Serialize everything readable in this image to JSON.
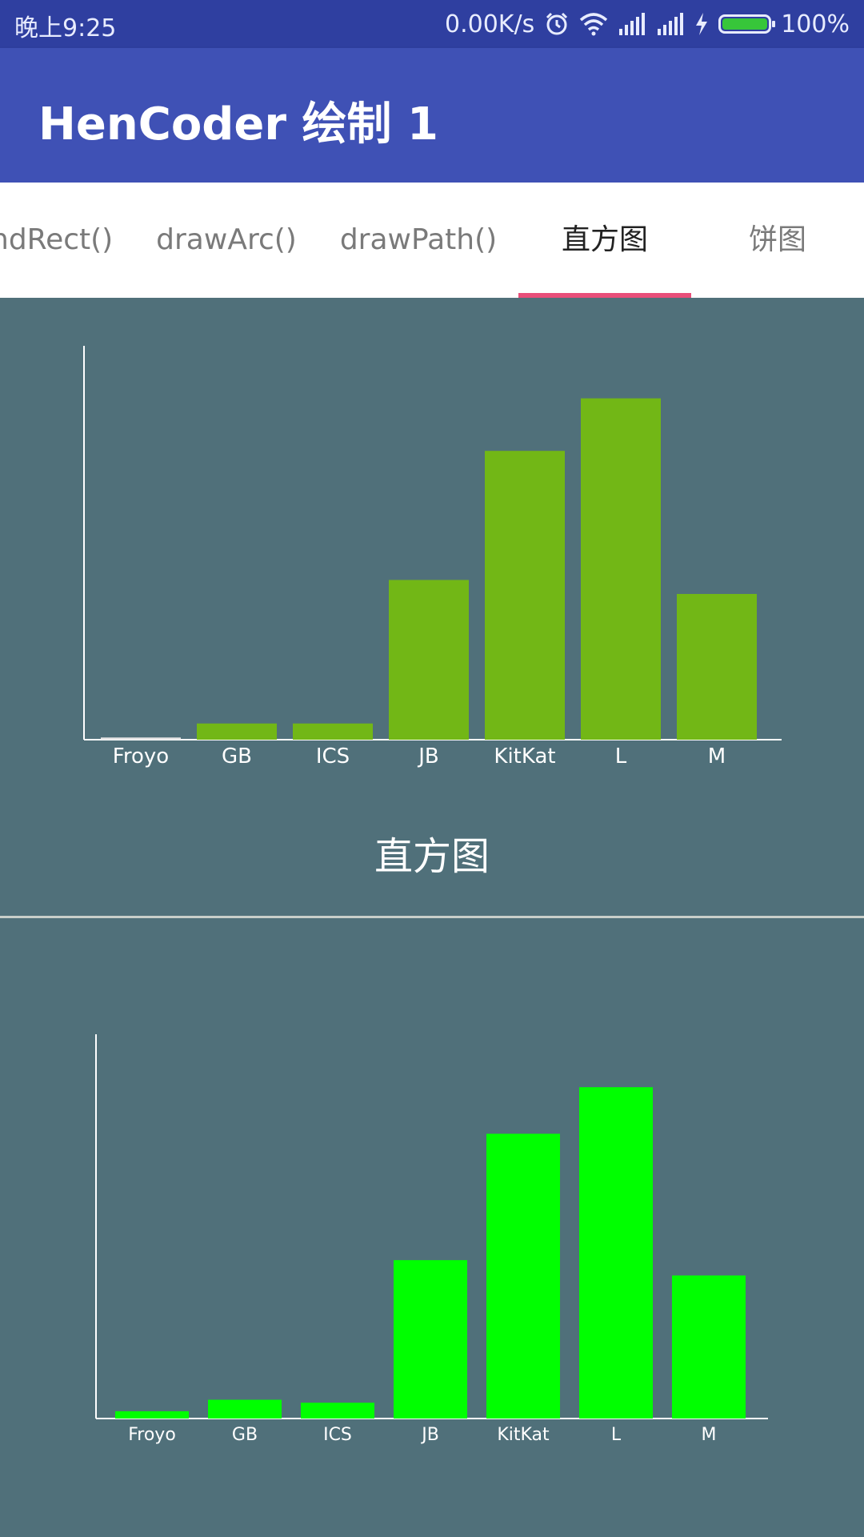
{
  "status_bar": {
    "time": "晚上9:25",
    "net_speed": "0.00K/s",
    "battery": "100%",
    "icons": [
      "alarm-icon",
      "wifi-icon",
      "signal-icon",
      "signal-icon",
      "charging-icon",
      "battery-icon"
    ]
  },
  "app_bar": {
    "title": "HenCoder 绘制 1"
  },
  "tabs": [
    {
      "label": "ndRect()"
    },
    {
      "label": "drawArc()"
    },
    {
      "label": "drawPath()"
    },
    {
      "label": "直方图",
      "active": true
    },
    {
      "label": "饼图"
    }
  ],
  "colors": {
    "status_bar": "#2f3fa0",
    "app_bar": "#3f51b5",
    "content_bg": "#50707a",
    "tab_indicator": "#e94f7a",
    "bar_top": "#72b716",
    "bar_bottom": "#00ff00"
  },
  "caption": "直方图",
  "chart_data": [
    {
      "type": "bar",
      "categories": [
        "Froyo",
        "GB",
        "ICS",
        "JB",
        "KitKat",
        "L",
        "M"
      ],
      "values": [
        0.5,
        3.7,
        3.7,
        36.5,
        66,
        78,
        33.3
      ],
      "ylim": [
        0,
        90
      ],
      "color": "#72b716",
      "first_bar_color": "#e6e6e6",
      "grid": false
    },
    {
      "type": "bar",
      "categories": [
        "Froyo",
        "GB",
        "ICS",
        "JB",
        "KitKat",
        "L",
        "M"
      ],
      "values": [
        1.7,
        4.4,
        3.7,
        37.1,
        66.7,
        77.6,
        33.5
      ],
      "ylim": [
        0,
        90
      ],
      "color": "#00ff00",
      "grid": false
    }
  ]
}
